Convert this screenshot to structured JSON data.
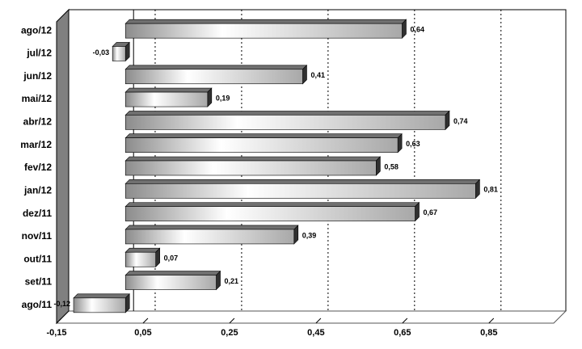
{
  "chart_data": {
    "type": "bar",
    "orientation": "horizontal",
    "categories": [
      "ago/12",
      "jul/12",
      "jun/12",
      "mai/12",
      "abr/12",
      "mar/12",
      "fev/12",
      "jan/12",
      "dez/11",
      "nov/11",
      "out/11",
      "set/11",
      "ago/11"
    ],
    "values": [
      0.64,
      -0.03,
      0.41,
      0.19,
      0.74,
      0.63,
      0.58,
      0.81,
      0.67,
      0.39,
      0.07,
      0.21,
      -0.12
    ],
    "value_labels": [
      "0,64",
      "-0,03",
      "0,41",
      "0,19",
      "0,74",
      "0,63",
      "0,58",
      "0,81",
      "0,67",
      "0,39",
      "0,07",
      "0,21",
      "-0,12"
    ],
    "color": "#c8c8c8",
    "xlim": [
      -0.15,
      1.0
    ],
    "xticks": [
      {
        "value": -0.15,
        "label": "-0,15"
      },
      {
        "value": 0.05,
        "label": "0,05"
      },
      {
        "value": 0.25,
        "label": "0,25"
      },
      {
        "value": 0.45,
        "label": "0,45"
      },
      {
        "value": 0.65,
        "label": "0,65"
      },
      {
        "value": 0.85,
        "label": "0,85"
      }
    ],
    "grid": true
  }
}
